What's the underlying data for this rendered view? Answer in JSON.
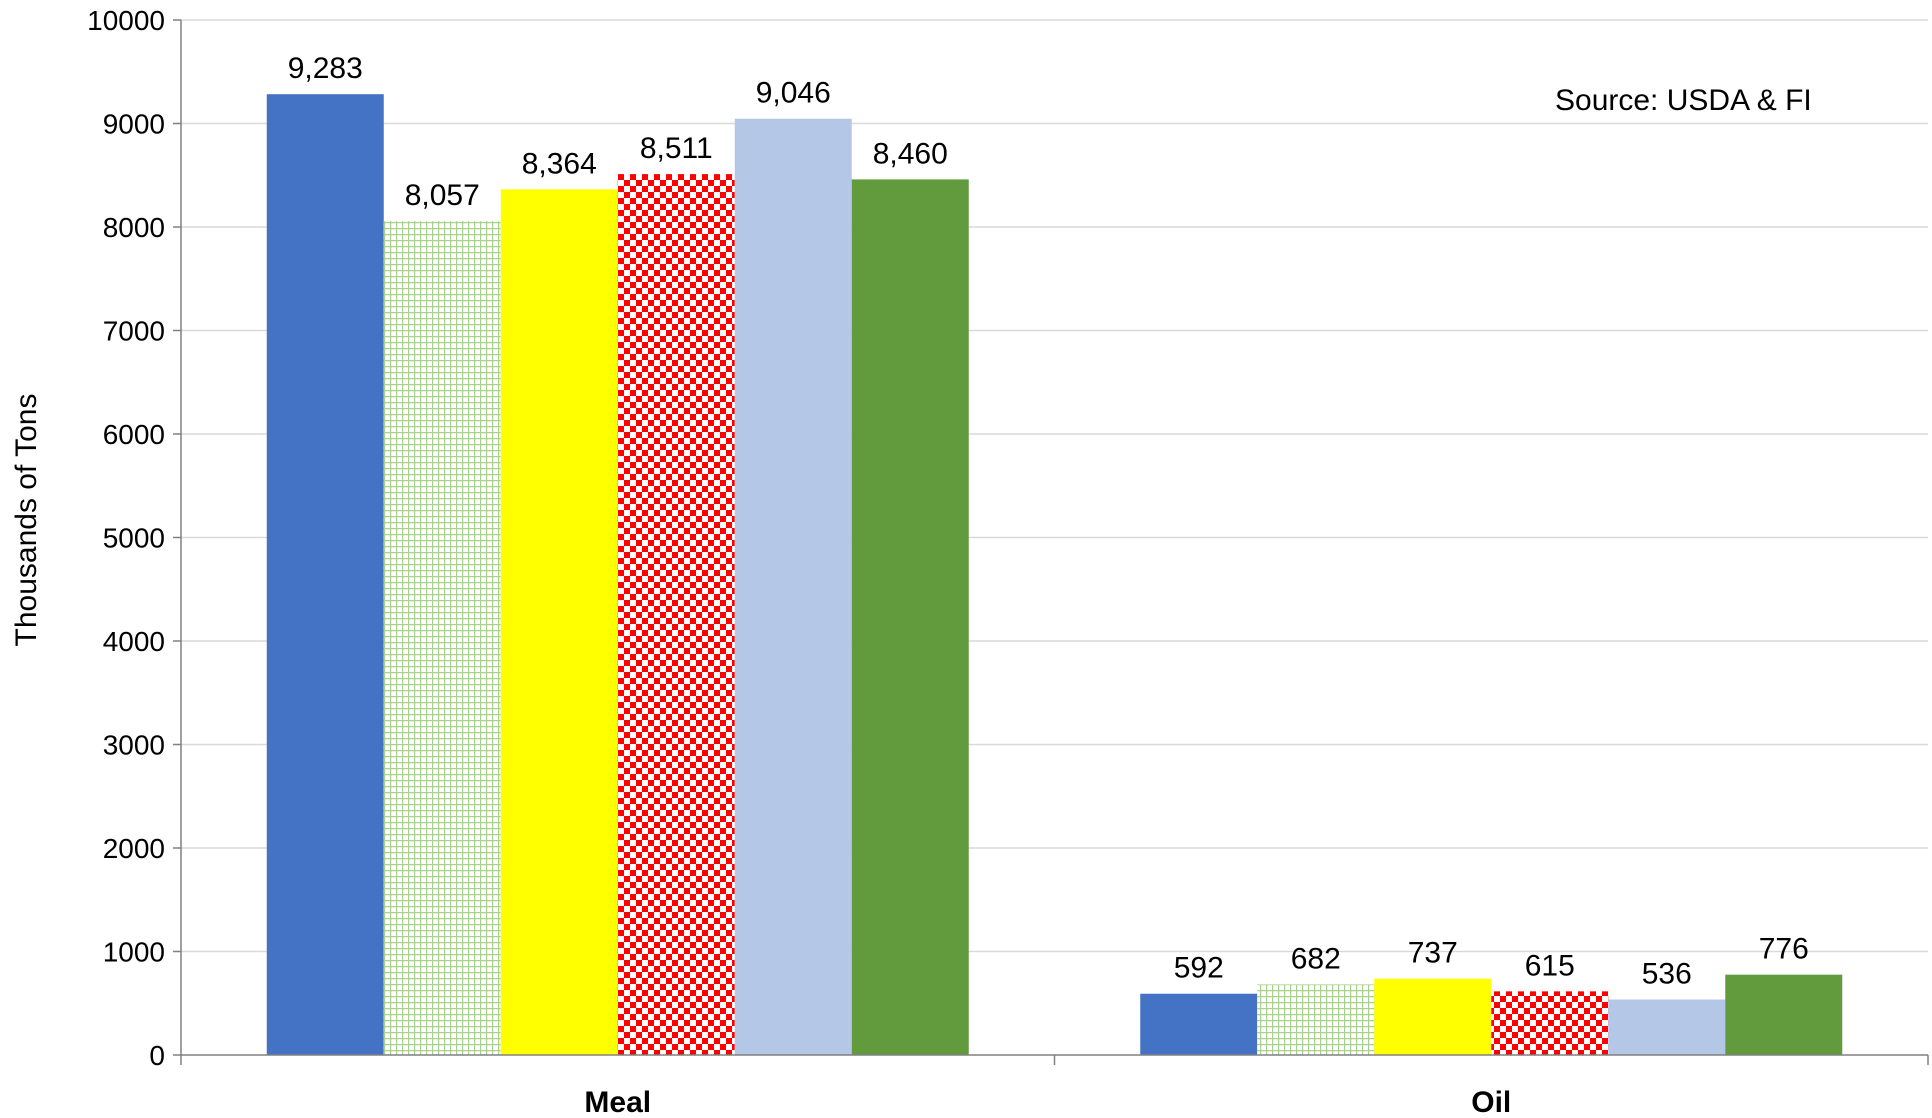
{
  "chart_data": {
    "type": "bar",
    "categories": [
      "Meal",
      "Oil"
    ],
    "series": [
      {
        "values": [
          9283,
          592
        ],
        "labels": [
          "9,283",
          "592"
        ],
        "color": "#4472C4",
        "pattern": "solid"
      },
      {
        "values": [
          8057,
          682
        ],
        "labels": [
          "8,057",
          "682"
        ],
        "color": "#A9D18E",
        "pattern": "grid"
      },
      {
        "values": [
          8364,
          737
        ],
        "labels": [
          "8,364",
          "737"
        ],
        "color": "#FFFF00",
        "pattern": "solid"
      },
      {
        "values": [
          8511,
          615
        ],
        "labels": [
          "8,511",
          "615"
        ],
        "color": "#FF0000",
        "pattern": "checker"
      },
      {
        "values": [
          9046,
          536
        ],
        "labels": [
          "9,046",
          "536"
        ],
        "color": "#B4C7E7",
        "pattern": "solid"
      },
      {
        "values": [
          8460,
          776
        ],
        "labels": [
          "8,460",
          "776"
        ],
        "color": "#629A3E",
        "pattern": "solid"
      }
    ],
    "ylabel": "Thousands of Tons",
    "ylim": [
      0,
      10000
    ],
    "yticks": [
      0,
      1000,
      2000,
      3000,
      4000,
      5000,
      6000,
      7000,
      8000,
      9000,
      10000
    ],
    "grid": true,
    "annotation": "Source: USDA & FI"
  }
}
